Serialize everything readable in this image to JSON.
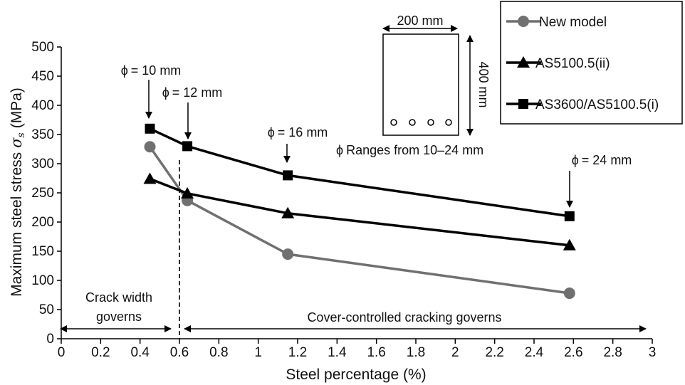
{
  "chart_data": {
    "type": "line",
    "xlabel": "Steel percentage (%)",
    "ylabel": "Maximum steel stress",
    "ylabel_symbol": "σ",
    "ylabel_subscript": "s",
    "ylabel_unit": "(MPa)",
    "xlim": [
      0,
      3
    ],
    "ylim": [
      0,
      500
    ],
    "xticks": [
      0,
      0.2,
      0.4,
      0.6,
      0.8,
      1,
      1.2,
      1.4,
      1.6,
      1.8,
      2,
      2.2,
      2.4,
      2.6,
      2.8,
      3
    ],
    "xtick_labels": [
      "0",
      "0.2",
      "0.4",
      "0.6",
      "0.8",
      "1",
      "1.2",
      "1.4",
      "1.6",
      "1.8",
      "2",
      "2.2",
      "2.4",
      "2.6",
      "2.8",
      "3"
    ],
    "yticks": [
      0,
      50,
      100,
      150,
      200,
      250,
      300,
      350,
      400,
      450,
      500
    ],
    "ytick_labels": [
      "0",
      "50",
      "100",
      "150",
      "200",
      "250",
      "300",
      "350",
      "400",
      "450",
      "500"
    ],
    "series": [
      {
        "name": "New model",
        "marker": "circle",
        "color": "#707070",
        "x": [
          0.45,
          0.64,
          1.15,
          2.58
        ],
        "y": [
          329,
          237,
          145,
          78
        ]
      },
      {
        "name": "AS5100.5(ii)",
        "marker": "triangle",
        "color": "#000000",
        "x": [
          0.45,
          0.64,
          1.15,
          2.58
        ],
        "y": [
          274,
          249,
          215,
          160
        ]
      },
      {
        "name": "AS3600/AS5100.5(i)",
        "marker": "square",
        "color": "#000000",
        "x": [
          0.45,
          0.64,
          1.15,
          2.58
        ],
        "y": [
          360,
          330,
          280,
          210
        ]
      }
    ],
    "vertical_line_x": 0.6,
    "annotations": {
      "phi_symbol": "ϕ",
      "bar_labels": [
        {
          "text": "= 10 mm",
          "x": 0.45
        },
        {
          "text": "= 12 mm",
          "x": 0.64
        },
        {
          "text": "= 16 mm",
          "x": 1.15
        },
        {
          "text": "= 24 mm",
          "x": 2.58
        }
      ],
      "ranges_text": "Ranges from 10–24 mm",
      "section_width": "200 mm",
      "section_depth": "400 mm",
      "region_left": [
        "Crack width",
        "governs"
      ],
      "region_right": "Cover-controlled cracking governs"
    }
  }
}
